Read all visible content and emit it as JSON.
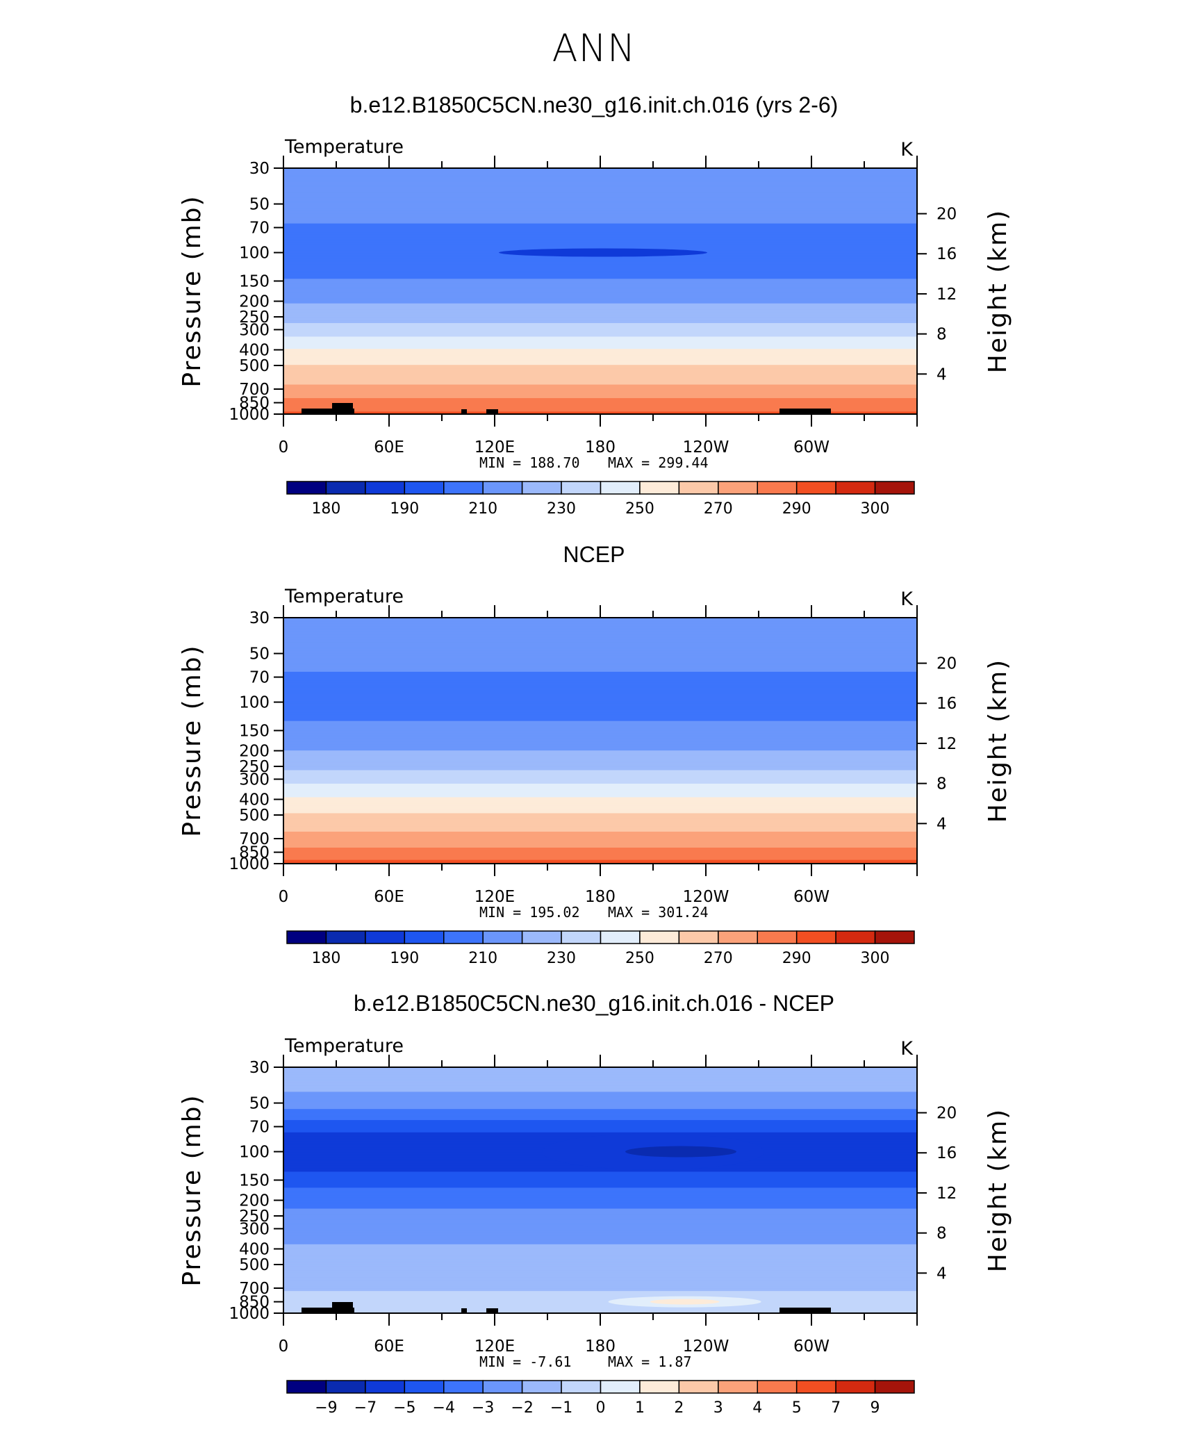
{
  "figure_title": "ANN",
  "chart_data": [
    {
      "type": "heatmap",
      "title": "b.e12.B1850C5CN.ne30_g16.init.ch.016 (yrs 2-6)",
      "variable": "Temperature",
      "units": "K",
      "xlabel": "",
      "ylabel": "Pressure (mb)",
      "ylabel_right": "Height (km)",
      "x_ticks": [
        "0",
        "60E",
        "120E",
        "180",
        "120W",
        "60W"
      ],
      "y_ticks": [
        30,
        50,
        70,
        100,
        150,
        200,
        250,
        300,
        400,
        500,
        700,
        850,
        1000
      ],
      "y_scale": "log",
      "y_reversed": true,
      "right_ticks": [
        20,
        16,
        12,
        8,
        4
      ],
      "min_label": "MIN =  188.70",
      "max_label": "MAX =  299.44",
      "min": 188.7,
      "max": 299.44,
      "colorbar_labels": [
        "180",
        "190",
        "210",
        "230",
        "250",
        "270",
        "290",
        "300"
      ],
      "colorbar_levels": [
        180,
        185,
        190,
        200,
        210,
        220,
        230,
        240,
        250,
        260,
        270,
        280,
        290,
        295,
        300
      ],
      "profile": {
        "pressure": [
          30,
          40,
          50,
          60,
          70,
          85,
          100,
          120,
          150,
          175,
          200,
          250,
          300,
          350,
          400,
          500,
          600,
          700,
          800,
          850,
          925,
          1000
        ],
        "temperature": [
          212,
          214,
          216,
          214,
          208,
          203,
          200,
          205,
          211,
          216,
          219,
          227,
          233,
          244,
          251,
          260,
          267,
          272,
          280,
          283,
          287,
          292
        ]
      }
    },
    {
      "type": "heatmap",
      "title": "NCEP",
      "variable": "Temperature",
      "units": "K",
      "xlabel": "",
      "ylabel": "Pressure (mb)",
      "ylabel_right": "Height (km)",
      "x_ticks": [
        "0",
        "60E",
        "120E",
        "180",
        "120W",
        "60W"
      ],
      "y_ticks": [
        30,
        50,
        70,
        100,
        150,
        200,
        250,
        300,
        400,
        500,
        700,
        850,
        1000
      ],
      "y_scale": "log",
      "y_reversed": true,
      "right_ticks": [
        20,
        16,
        12,
        8,
        4
      ],
      "min_label": "MIN =  195.02",
      "max_label": "MAX =  301.24",
      "min": 195.02,
      "max": 301.24,
      "colorbar_labels": [
        "180",
        "190",
        "210",
        "230",
        "250",
        "270",
        "290",
        "300"
      ],
      "colorbar_levels": [
        180,
        185,
        190,
        200,
        210,
        220,
        230,
        240,
        250,
        260,
        270,
        280,
        290,
        295,
        300
      ],
      "profile": {
        "pressure": [
          30,
          40,
          50,
          60,
          70,
          85,
          100,
          120,
          150,
          175,
          200,
          250,
          300,
          350,
          400,
          500,
          600,
          700,
          800,
          850,
          925,
          1000
        ],
        "temperature": [
          220,
          218,
          216,
          213,
          207,
          205,
          204,
          208,
          213,
          217,
          220,
          228,
          236,
          245,
          252,
          261,
          268,
          273,
          280,
          284,
          288,
          293
        ]
      }
    },
    {
      "type": "heatmap",
      "title": "b.e12.B1850C5CN.ne30_g16.init.ch.016 - NCEP",
      "variable": "Temperature",
      "units": "K",
      "xlabel": "",
      "ylabel": "Pressure (mb)",
      "ylabel_right": "Height (km)",
      "x_ticks": [
        "0",
        "60E",
        "120E",
        "180",
        "120W",
        "60W"
      ],
      "y_ticks": [
        30,
        50,
        70,
        100,
        150,
        200,
        250,
        300,
        400,
        500,
        700,
        850,
        1000
      ],
      "y_scale": "log",
      "y_reversed": true,
      "right_ticks": [
        20,
        16,
        12,
        8,
        4
      ],
      "min_label": "MIN =   -7.61",
      "max_label": "MAX =     1.87",
      "min": -7.61,
      "max": 1.87,
      "colorbar_labels": [
        "-9",
        "-7",
        "-5",
        "-4",
        "-3",
        "-2",
        "-1",
        "0",
        "1",
        "2",
        "3",
        "4",
        "5",
        "7",
        "9"
      ],
      "colorbar_levels": [
        -9,
        -7,
        -5,
        -4,
        -3,
        -2,
        -1,
        0,
        1,
        2,
        3,
        4,
        5,
        7,
        9
      ],
      "profile": {
        "pressure": [
          30,
          40,
          50,
          60,
          70,
          85,
          100,
          120,
          150,
          175,
          200,
          250,
          300,
          350,
          400,
          500,
          600,
          700,
          800,
          850,
          925,
          1000
        ],
        "temperature": [
          -1.2,
          -1.8,
          -2.5,
          -3.5,
          -4.8,
          -5.3,
          -5.5,
          -5.3,
          -4.6,
          -3.8,
          -3.2,
          -2.8,
          -2.5,
          -2.2,
          -1.8,
          -1.3,
          -1.3,
          -1.1,
          -0.8,
          -0.5,
          -0.6,
          -0.9
        ]
      }
    }
  ],
  "colors": {
    "scale": [
      "#000080",
      "#0a2bb0",
      "#0f3ad8",
      "#1e56f0",
      "#3d74fb",
      "#6b96fb",
      "#9bb9fb",
      "#c2d6fb",
      "#e2eefb",
      "#fdebd9",
      "#fcc9a9",
      "#fba27a",
      "#f97a4e",
      "#f24f22",
      "#d42a10",
      "#a5140a",
      "#8b0000"
    ],
    "land": "#000000"
  }
}
